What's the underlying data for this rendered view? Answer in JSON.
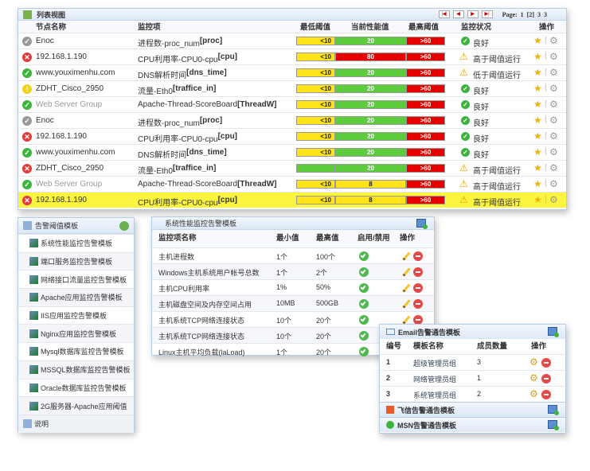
{
  "list_view": {
    "title": "列表视图",
    "pager": {
      "label": "Page:",
      "pages": [
        "1",
        "[2]",
        "3",
        "3"
      ]
    },
    "columns": [
      "节点名称",
      "监控项",
      "最低阈值",
      "当前性能值",
      "最高阈值",
      "监控状况",
      "操作"
    ],
    "rows": [
      {
        "node": "Enoc",
        "node_status": "gray",
        "item": "进程数-proc_num",
        "key": "[proc]",
        "min": "<10",
        "min_color": "yellow",
        "cur": "20",
        "cur_color": "green",
        "max": ">60",
        "status": "良好",
        "status_icon": "ok"
      },
      {
        "node": "192.168.1.190",
        "node_status": "error",
        "item": "CPU利用率-CPU0-cpu",
        "key": "[cpu]",
        "min": "<10",
        "min_color": "yellow",
        "cur": "80",
        "cur_color": "red",
        "max": ">60",
        "status": "高于阈值运行",
        "status_icon": "warning"
      },
      {
        "node": "www.youximenhu.com",
        "node_status": "ok",
        "item": "DNS解析时间",
        "key": "[dns_time]",
        "min": "<10",
        "min_color": "yellow",
        "cur": "20",
        "cur_color": "green",
        "max": ">60",
        "status": "低于阈值运行",
        "status_icon": "warning"
      },
      {
        "node": "ZDHT_Cisco_2950",
        "node_status": "warn",
        "item": "流量-Eth0",
        "key": "[traffice_in]",
        "min": "<10",
        "min_color": "yellow",
        "cur": "20",
        "cur_color": "green",
        "max": ">60",
        "status": "良好",
        "status_icon": "ok"
      },
      {
        "node": "Web Server Group",
        "node_status": "ok",
        "item": "Apache-Thread-ScoreBoard",
        "key": "[ThreadW]",
        "min": "<10",
        "min_color": "yellow",
        "cur": "20",
        "cur_color": "green",
        "max": ">60",
        "status": "良好",
        "status_icon": "ok"
      },
      {
        "node": "Enoc",
        "node_status": "gray",
        "item": "进程数-proc_num",
        "key": "[proc]",
        "min": "<10",
        "min_color": "yellow",
        "cur": "20",
        "cur_color": "green",
        "max": ">60",
        "status": "良好",
        "status_icon": "ok"
      },
      {
        "node": "192.168.1.190",
        "node_status": "error",
        "item": "CPU利用率-CPU0-cpu",
        "key": "[cpu]",
        "min": "<10",
        "min_color": "yellow",
        "cur": "20",
        "cur_color": "green",
        "max": ">60",
        "status": "良好",
        "status_icon": "ok"
      },
      {
        "node": "www.youximenhu.com",
        "node_status": "ok",
        "item": "DNS解析时间",
        "key": "[dns_time]",
        "min": "<10",
        "min_color": "yellow",
        "cur": "20",
        "cur_color": "green",
        "max": ">60",
        "status": "良好",
        "status_icon": "ok"
      },
      {
        "node": "ZDHT_Cisco_2950",
        "node_status": "error",
        "item": "流量-Eth0",
        "key": "[traffice_in]",
        "min": "",
        "min_color": "green",
        "cur": "20",
        "cur_color": "green",
        "max": ">60",
        "status": "高于阈值运行",
        "status_icon": "warning"
      },
      {
        "node": "Web Server Group",
        "node_status": "ok",
        "item": "Apache-Thread-ScoreBoard",
        "key": "[ThreadW]",
        "min": "<10",
        "min_color": "yellow",
        "cur": "8",
        "cur_color": "yellow",
        "max": ">60",
        "status": "高于阈值运行",
        "status_icon": "warning"
      },
      {
        "node": "192.168.1.190",
        "node_status": "error",
        "item": "CPU利用率-CPU0-cpu",
        "key": "[cpu]",
        "min": "<10",
        "min_color": "yellow",
        "cur": "8",
        "cur_color": "yellow",
        "max": ">60",
        "status": "高于阈值运行",
        "status_icon": "warning",
        "highlighted": true
      }
    ]
  },
  "alarm_templates": {
    "title": "告警阈值模板",
    "items": [
      "系统性能监控告警模板",
      "端口服务监控告警模板",
      "网络接口流量监控告警模板",
      "Apache应用监控告警模板",
      "IIS应用监控告警模板",
      "Nginx应用监控告警模板",
      "Mysql数据库监控告警模板",
      "MSSQL数据库监控告警模板",
      "Oracle数据库监控告警模板",
      "2G服务器-Apache应用阈值"
    ],
    "footer": "说明"
  },
  "perf_template": {
    "title": "系统性能监控告警模板",
    "columns": [
      "监控项名称",
      "最小值",
      "最高值",
      "启用/禁用",
      "操作"
    ],
    "rows": [
      [
        "主机进程数",
        "1个",
        "100个"
      ],
      [
        "Windows主机系统用户帐号总数",
        "1个",
        "2个"
      ],
      [
        "主机CPU利用率",
        "1%",
        "50%"
      ],
      [
        "主机磁盘空间及内存空间占用",
        "10MB",
        "500GB"
      ],
      [
        "主机系统TCP网络连接状态",
        "10个",
        "20个"
      ],
      [
        "主机系统TCP网络连接状态",
        "10个",
        "20个"
      ],
      [
        "Linux主机平均负载(laLoad)",
        "1个",
        "20个"
      ]
    ]
  },
  "email_template": {
    "title": "Email告警通告模板",
    "columns": [
      "编号",
      "模板名称",
      "成员数量",
      "操作"
    ],
    "rows": [
      [
        "1",
        "超级管理员组",
        "3"
      ],
      [
        "2",
        "网络管理员组",
        "1"
      ],
      [
        "3",
        "系统管理员组",
        "2"
      ]
    ],
    "feixin": "飞信告警通告模板",
    "msn": "MSN告警通告模板"
  },
  "colors": {
    "yellow": "#ffe31a",
    "green": "#5dcc3c",
    "red": "#e60000",
    "highlight": "#fbf53f"
  }
}
